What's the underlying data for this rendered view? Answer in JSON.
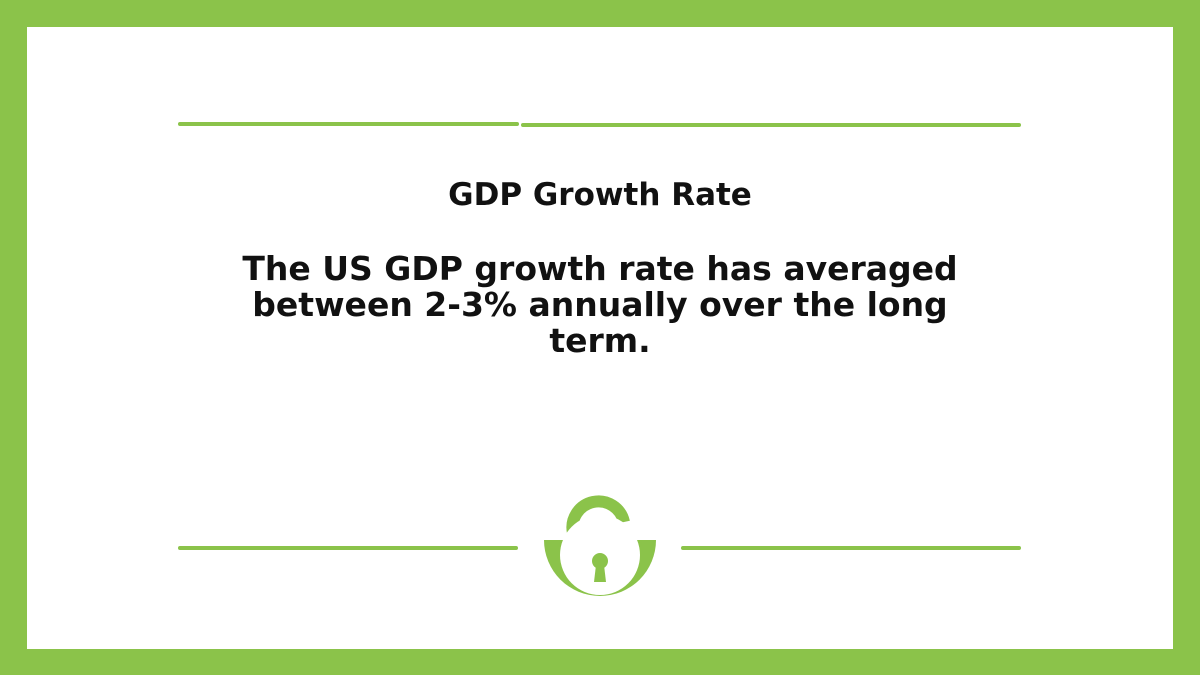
{
  "card": {
    "title": "GDP Growth Rate",
    "text": "The US GDP growth rate has averaged between 2-3% annually over the long term."
  },
  "logo": {
    "icon": "open-padlock-icon"
  },
  "colors": {
    "accent": "#8bc34a",
    "background": "#ffffff",
    "text": "#111111"
  }
}
